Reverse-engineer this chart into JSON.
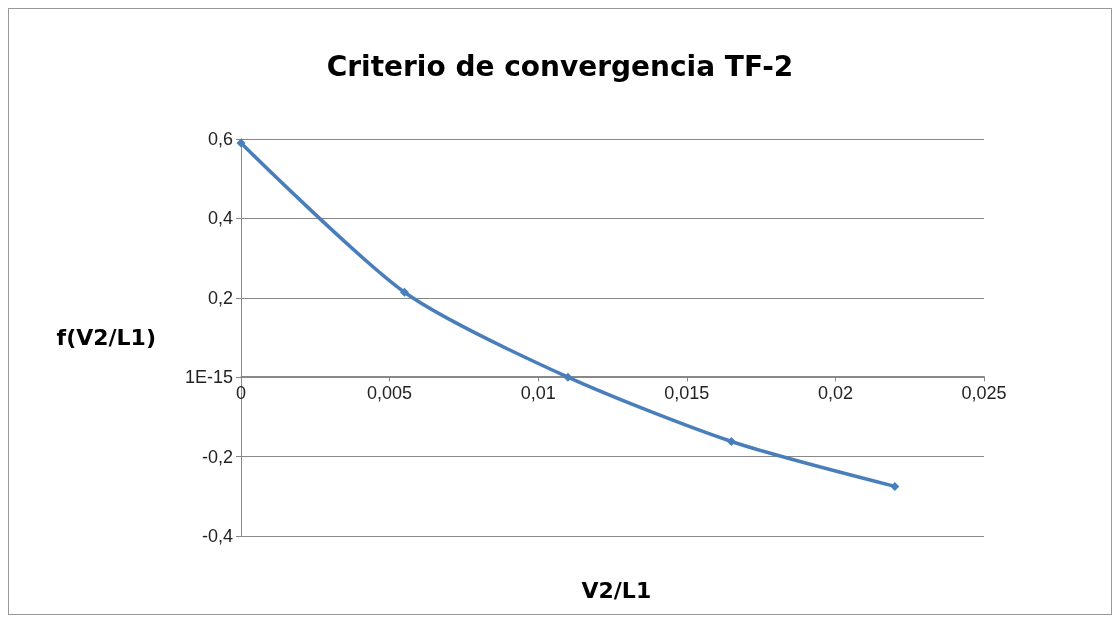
{
  "chart_data": {
    "type": "line",
    "title": "Criterio de convergencia TF-2",
    "xlabel": "V2/L1",
    "ylabel": "f(V2/L1)",
    "x": [
      0,
      0.0055,
      0.011,
      0.0165,
      0.022
    ],
    "series": [
      {
        "color": "#4a7ebb",
        "values": [
          0.59,
          0.214,
          0,
          -0.162,
          -0.275
        ]
      }
    ],
    "xlim": [
      0,
      0.025
    ],
    "xticks": [
      0,
      {
        "value": 0.005,
        "label": "0,005"
      },
      {
        "value": 0.01,
        "label": "0,01"
      },
      {
        "value": 0.015,
        "label": "0,015"
      },
      {
        "value": 0.02,
        "label": "0,02"
      },
      {
        "value": 0.025,
        "label": "0,025"
      }
    ],
    "ylim": [
      -0.4,
      0.6
    ],
    "yticks": [
      {
        "value": -0.4,
        "label": "-0,4"
      },
      {
        "value": -0.2,
        "label": "-0,2"
      },
      {
        "value": 0,
        "label": "1E-15"
      },
      {
        "value": 0.2,
        "label": "0,2"
      },
      {
        "value": 0.4,
        "label": "0,4"
      },
      {
        "value": 0.6,
        "label": "0,6"
      }
    ],
    "grid": "y",
    "marker": "diamond",
    "line_style": "solid"
  }
}
